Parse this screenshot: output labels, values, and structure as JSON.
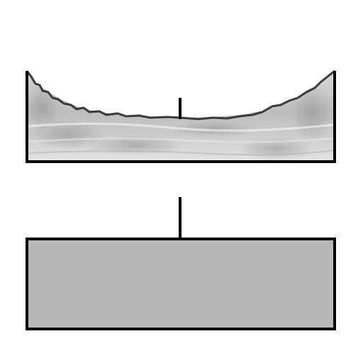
{
  "colors": {
    "background": "#ffffff",
    "outline": "#000000",
    "lower_box_fill": "#b8b8b8",
    "texture_light": "#e6e6e6",
    "texture_mid": "#c8c8c8",
    "texture_dark": "#9a9a9a"
  }
}
